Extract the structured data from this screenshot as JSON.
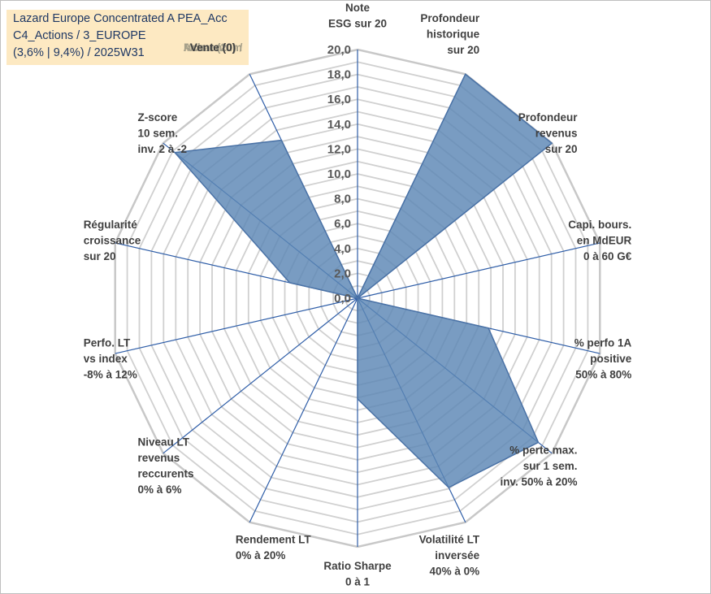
{
  "title": {
    "line1": "Lazard Europe Concentrated A PEA_Acc",
    "line2": "C4_Actions / 3_EUROPE",
    "line3": "(3,6% | 9,4%) / 2025W31"
  },
  "momentum": {
    "line1": "Momentum",
    "line2": "Achat (20) /",
    "line3": "Vente (0)",
    "color_buy": "#a6a08a",
    "color_sell": "#404040"
  },
  "colors": {
    "fill": "#5b86b5",
    "fill_opacity": "0.82",
    "stroke": "#4a72a6",
    "spoke": "#2f5ea8",
    "grid": "#d0d0d0",
    "outer_ring": "#c8c8c8",
    "title_bg": "#fde9c2",
    "title_text": "#1f3864"
  },
  "chart_data": {
    "type": "radar",
    "rlim": [
      0,
      20
    ],
    "grid": true,
    "gridline_step": 1,
    "tick_labels": [
      "0,0",
      "2,0",
      "4,0",
      "6,0",
      "8,0",
      "10,0",
      "12,0",
      "14,0",
      "16,0",
      "18,0",
      "20,0"
    ],
    "tick_values": [
      0,
      2,
      4,
      6,
      8,
      10,
      12,
      14,
      16,
      18,
      20
    ],
    "axes": [
      {
        "label": [
          "Note",
          "ESG sur 20"
        ],
        "value": 0.0
      },
      {
        "label": [
          "Profondeur",
          "historique",
          "sur 20"
        ],
        "value": 20.0
      },
      {
        "label": [
          "Profondeur",
          "revenus",
          "sur 20"
        ],
        "value": 20.0
      },
      {
        "label": [
          "Capi. bours.",
          "en MdEUR",
          "0 à 60 G€"
        ],
        "value": 0.0
      },
      {
        "label": [
          "% perfo 1A",
          "positive",
          "50% à 80%"
        ],
        "value": 10.8
      },
      {
        "label": [
          "% perte max.",
          "sur 1 sem.",
          "inv. 50% à 20%"
        ],
        "value": 18.6
      },
      {
        "label": [
          "Volatilité LT",
          "inversée",
          "40% à 0%"
        ],
        "value": 16.9
      },
      {
        "label": [
          "Ratio Sharpe",
          "0 à 1"
        ],
        "value": 8.1
      },
      {
        "label": [
          "Rendement LT",
          "0% à 20%"
        ],
        "value": 0.0
      },
      {
        "label": [
          "Niveau LT",
          "revenus",
          "reccurents",
          "0% à 6%"
        ],
        "value": 0.0
      },
      {
        "label": [
          "Perfo. LT",
          "vs index",
          "-8% à 12%"
        ],
        "value": 0.0
      },
      {
        "label": [
          "Régularité",
          "croissance",
          "sur 20"
        ],
        "value": 5.6
      },
      {
        "label": [
          "Z-score",
          "10 sem.",
          "inv. 2 à -2"
        ],
        "value": 18.8
      },
      {
        "label": [
          "Momentum",
          "Achat (20) /",
          "Vente (0)"
        ],
        "value": 14.1
      }
    ]
  }
}
